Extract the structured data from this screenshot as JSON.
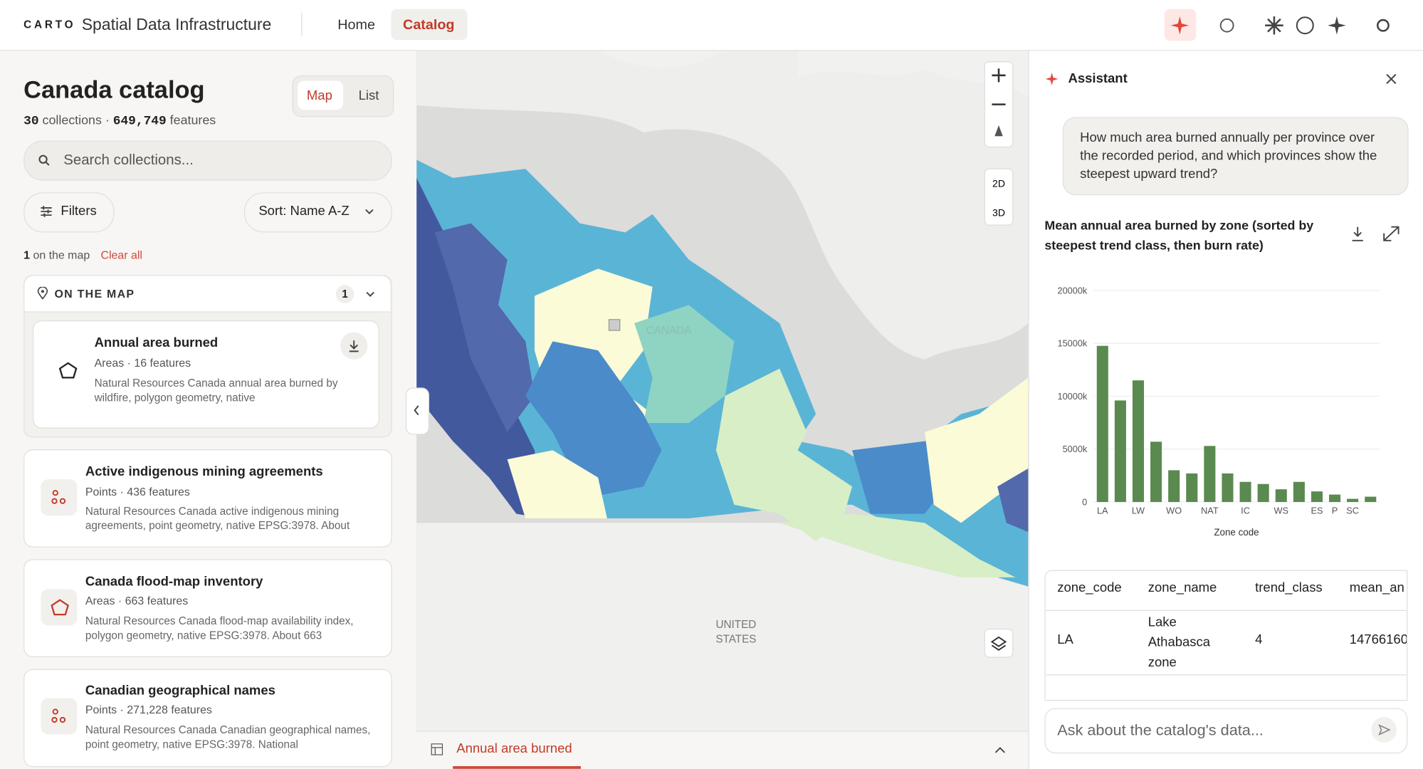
{
  "header": {
    "logo": "CARTO",
    "title": "Spatial Data Infrastructure",
    "nav": [
      "Home",
      "Catalog"
    ]
  },
  "sidebar": {
    "title": "Canada catalog",
    "view_toggle": [
      "Map",
      "List"
    ],
    "collections_count": "30",
    "collections_label": "collections ·",
    "features_count": "649,749",
    "features_label": "features",
    "search_placeholder": "Search collections...",
    "filters": "Filters",
    "sort": "Sort: Name A-Z",
    "on_map_count": "1",
    "on_map_label": "on the map",
    "clear": "Clear all",
    "section": {
      "title": "ON THE MAP",
      "count": "1"
    },
    "items": [
      {
        "title": "Annual area burned",
        "meta": "Areas · 16 features",
        "description": "Natural Resources Canada annual area burned by wildfire, polygon geometry, native"
      },
      {
        "title": "Active indigenous mining agreements",
        "meta": "Points · 436 features",
        "description": "Natural Resources Canada active indigenous mining agreements, point geometry, native EPSG:3978. About"
      },
      {
        "title": "Canada flood-map inventory",
        "meta": "Areas · 663 features",
        "description": "Natural Resources Canada flood-map availability index, polygon geometry, native EPSG:3978. About 663"
      },
      {
        "title": "Canadian geographical names",
        "meta": "Points · 271,228 features",
        "description": "Natural Resources Canada Canadian geographical names, point geometry, native EPSG:3978. National"
      }
    ]
  },
  "map": {
    "label_canada": "CANADA",
    "label_us": [
      "UNITED",
      "STATES"
    ],
    "modes": [
      "2D",
      "3D"
    ],
    "bottom_tab": "Annual area burned"
  },
  "assistant": {
    "title": "Assistant",
    "question": "How much area burned annually per province over the recorded period, and which provinces show the steepest upward trend?",
    "table": {
      "headers": [
        "zone_code",
        "zone_name",
        "trend_class",
        "mean_an"
      ],
      "rows": [
        [
          "LA",
          "Lake Athabasca zone",
          "4",
          "14766160"
        ]
      ]
    },
    "input_placeholder": "Ask about the catalog's data..."
  },
  "chart_data": {
    "type": "bar",
    "title": "Mean annual area burned by zone (sorted by steepest trend class, then burn rate)",
    "x_label": "Zone code",
    "color": "#5a8a4f",
    "categories": [
      "LA",
      null,
      "LW",
      null,
      "WO",
      null,
      "NAT",
      null,
      "IC",
      null,
      "WS",
      null,
      "ES",
      "P",
      "SC",
      null
    ],
    "values": [
      14766,
      9600,
      11500,
      5700,
      3000,
      2700,
      5300,
      2700,
      1900,
      1700,
      1200,
      1900,
      1000,
      700,
      300,
      500
    ],
    "ylim": [
      0,
      20000
    ],
    "yticks": [
      0,
      {
        "value": 5000,
        "label": "5000k"
      },
      {
        "value": 10000,
        "label": "10000k"
      },
      {
        "value": 15000,
        "label": "15000k"
      },
      {
        "value": 20000,
        "label": "20000k"
      }
    ],
    "grid": true
  }
}
